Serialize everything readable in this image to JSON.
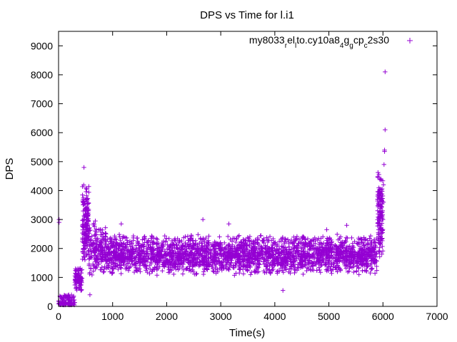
{
  "chart_data": {
    "type": "scatter",
    "title": "DPS vs Time for l.i1",
    "xlabel": "Time(s)",
    "ylabel": "DPS",
    "xlim": [
      0,
      7000
    ],
    "ylim": [
      0,
      9500
    ],
    "x_ticks": [
      "0",
      "1000",
      "2000",
      "3000",
      "4000",
      "5000",
      "6000",
      "7000"
    ],
    "y_ticks": [
      "0",
      "1000",
      "2000",
      "3000",
      "4000",
      "5000",
      "6000",
      "7000",
      "8000",
      "9000"
    ],
    "grid": false,
    "legend_position": "top-right",
    "marker": "+",
    "series": [
      {
        "name": "my8033_rel_lto.cy10a8_4g_gcp_c2s30",
        "legend_parts": [
          {
            "text": "my8033",
            "sub": false
          },
          {
            "text": "r",
            "sub": true
          },
          {
            "text": "el",
            "sub": false
          },
          {
            "text": "l",
            "sub": true
          },
          {
            "text": "to.cy10a8",
            "sub": false
          },
          {
            "text": "4",
            "sub": true
          },
          {
            "text": "g",
            "sub": false
          },
          {
            "text": "g",
            "sub": true
          },
          {
            "text": "cp",
            "sub": false
          },
          {
            "text": "c",
            "sub": true
          },
          {
            "text": "2s30",
            "sub": false
          }
        ],
        "color": "#9400d3",
        "segments": [
          {
            "x_start": 0,
            "x_end": 300,
            "y_low": 50,
            "y_high": 400,
            "n": 110
          },
          {
            "x_start": 300,
            "x_end": 440,
            "y_low": 300,
            "y_high": 1400,
            "n": 80
          },
          {
            "x_start": 440,
            "x_end": 560,
            "y_low": 900,
            "y_high": 4300,
            "n": 160
          },
          {
            "x_start": 560,
            "x_end": 900,
            "y_low": 700,
            "y_high": 2900,
            "n": 200
          },
          {
            "x_start": 900,
            "x_end": 5900,
            "y_low": 800,
            "y_high": 2500,
            "n": 2600
          },
          {
            "x_start": 5900,
            "x_end": 6000,
            "y_low": 1000,
            "y_high": 4800,
            "n": 140
          }
        ],
        "points": [
          [
            10,
            3000
          ],
          [
            10,
            2900
          ],
          [
            470,
            4800
          ],
          [
            680,
            2950
          ],
          [
            1160,
            2850
          ],
          [
            2670,
            3000
          ],
          [
            4150,
            550
          ],
          [
            4960,
            2650
          ],
          [
            5920,
            2650
          ],
          [
            6000,
            3000
          ],
          [
            6010,
            3600
          ],
          [
            6010,
            4200
          ],
          [
            6020,
            4900
          ],
          [
            6030,
            5350
          ],
          [
            6030,
            5400
          ],
          [
            6040,
            6100
          ],
          [
            6040,
            8100
          ],
          [
            5330,
            2800
          ],
          [
            3150,
            2850
          ],
          [
            580,
            400
          ]
        ]
      }
    ]
  }
}
